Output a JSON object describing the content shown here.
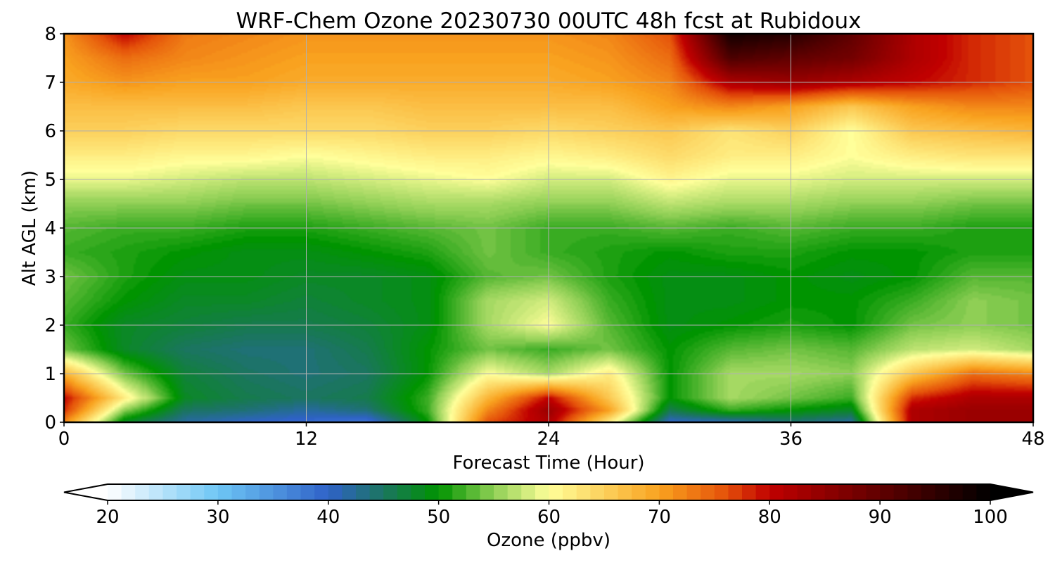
{
  "chart_data": {
    "type": "heatmap",
    "title": "WRF-Chem Ozone  20230730 00UTC 48h fcst at Rubidoux",
    "xlabel": "Forecast Time (Hour)",
    "ylabel": "Alt AGL (km)",
    "xlim": [
      0,
      48
    ],
    "ylim": [
      0,
      8
    ],
    "x_ticks": [
      "0",
      "12",
      "24",
      "36",
      "48"
    ],
    "y_ticks": [
      "0",
      "1",
      "2",
      "3",
      "4",
      "5",
      "6",
      "7",
      "8"
    ],
    "grid": true,
    "x": [
      0,
      3,
      6,
      9,
      12,
      15,
      18,
      21,
      24,
      27,
      30,
      33,
      36,
      39,
      42,
      45,
      48
    ],
    "y": [
      0,
      0.25,
      0.5,
      1,
      1.5,
      2,
      2.5,
      3,
      3.5,
      4,
      4.5,
      5,
      5.5,
      6,
      6.5,
      7,
      7.5,
      8
    ],
    "z": [
      [
        72,
        48,
        42,
        40,
        39,
        38,
        50,
        76,
        82,
        62,
        40,
        41,
        44,
        42,
        82,
        84,
        84
      ],
      [
        78,
        55,
        45,
        44,
        42,
        44,
        52,
        72,
        84,
        70,
        46,
        52,
        50,
        48,
        82,
        84,
        84
      ],
      [
        80,
        62,
        48,
        46,
        45,
        46,
        52,
        68,
        80,
        66,
        50,
        56,
        54,
        52,
        78,
        82,
        82
      ],
      [
        68,
        54,
        47,
        45,
        44,
        45,
        50,
        60,
        56,
        62,
        50,
        56,
        56,
        55,
        66,
        74,
        72
      ],
      [
        54,
        48,
        45,
        44,
        44,
        46,
        50,
        54,
        52,
        54,
        50,
        53,
        54,
        53,
        57,
        58,
        56
      ],
      [
        52,
        48,
        47,
        46,
        46,
        47,
        49,
        56,
        60,
        53,
        49,
        50,
        51,
        50,
        54,
        55,
        54
      ],
      [
        53,
        50,
        48,
        48,
        47,
        48,
        49,
        56,
        58,
        52,
        49,
        49,
        50,
        50,
        52,
        55,
        54
      ],
      [
        54,
        51,
        49,
        49,
        48,
        48,
        49,
        53,
        54,
        51,
        49,
        49,
        50,
        49,
        50,
        53,
        53
      ],
      [
        52,
        51,
        50,
        49,
        49,
        50,
        51,
        54,
        52,
        51,
        50,
        51,
        51,
        50,
        50,
        51,
        51
      ],
      [
        53,
        52,
        52,
        51,
        51,
        52,
        53,
        54,
        52,
        52,
        53,
        52,
        53,
        52,
        52,
        51,
        51
      ],
      [
        55,
        55,
        55,
        54,
        54,
        55,
        56,
        56,
        55,
        55,
        57,
        56,
        56,
        55,
        55,
        54,
        54
      ],
      [
        59,
        59,
        58,
        57,
        57,
        58,
        59,
        60,
        58,
        58,
        61,
        59,
        59,
        58,
        58,
        58,
        58
      ],
      [
        62,
        62,
        61,
        61,
        60,
        61,
        62,
        62,
        61,
        62,
        64,
        62,
        62,
        60,
        62,
        63,
        63
      ],
      [
        65,
        65,
        64,
        64,
        64,
        64,
        65,
        65,
        64,
        65,
        66,
        63,
        65,
        60,
        66,
        67,
        68
      ],
      [
        67,
        67,
        67,
        67,
        66,
        66,
        67,
        67,
        67,
        67,
        70,
        72,
        70,
        66,
        70,
        72,
        72
      ],
      [
        69,
        71,
        70,
        70,
        69,
        69,
        69,
        69,
        69,
        70,
        72,
        82,
        84,
        82,
        80,
        78,
        76
      ],
      [
        70,
        74,
        72,
        71,
        70,
        70,
        70,
        70,
        70,
        71,
        74,
        92,
        90,
        88,
        82,
        78,
        76
      ],
      [
        71,
        80,
        73,
        72,
        71,
        71,
        71,
        71,
        71,
        72,
        76,
        98,
        96,
        90,
        82,
        78,
        76
      ]
    ],
    "colorbar": {
      "label": "Ozone  (ppbv)",
      "min": 20,
      "max": 100,
      "ticks": [
        "20",
        "30",
        "40",
        "50",
        "60",
        "70",
        "80",
        "90",
        "100"
      ],
      "extend": "both",
      "colors": [
        "#ffffff",
        "#6ec6f5",
        "#2f62c8",
        "#1b7560",
        "#009400",
        "#8fcf55",
        "#ffff9a",
        "#f9a21f",
        "#e5520a",
        "#c00000",
        "#000000"
      ],
      "stops": [
        20,
        30,
        40,
        45,
        50,
        55,
        60,
        70,
        76,
        80,
        100
      ]
    }
  }
}
